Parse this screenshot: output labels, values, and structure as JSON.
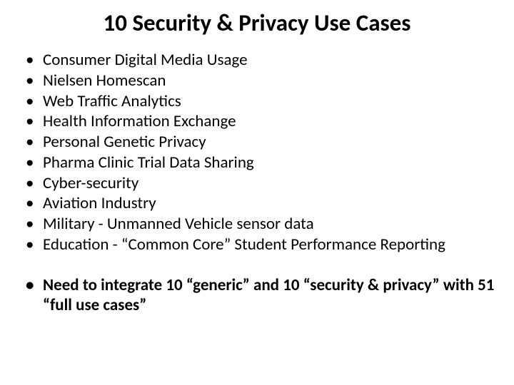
{
  "slide": {
    "title": "10 Security & Privacy Use Cases",
    "title_fontsize": 33,
    "title_fontweight": 700,
    "title_color": "#000000",
    "bullets": [
      "Consumer Digital Media Usage",
      "Nielsen Homescan",
      "Web Traffic Analytics",
      "Health Information Exchange",
      "Personal Genetic Privacy",
      "Pharma Clinic Trial Data Sharing",
      "Cyber-security",
      "Aviation Industry",
      "Military - Unmanned Vehicle sensor data",
      "Education - “Common Core” Student Performance Reporting"
    ],
    "bullet_fontsize": 23,
    "bullet_color": "#000000",
    "bullet_fontweight": 400,
    "footer_bullet": "Need to integrate 10 “generic” and 10 “security & privacy” with 51 “full use cases”",
    "footer_fontweight": 700,
    "background_color": "#ffffff"
  }
}
